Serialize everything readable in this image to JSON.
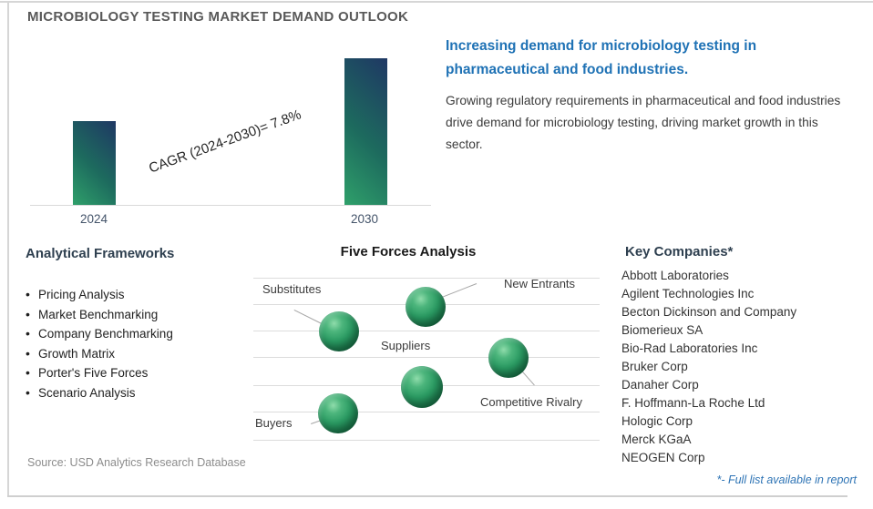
{
  "title": "MICROBIOLOGY TESTING MARKET DEMAND OUTLOOK",
  "chart_data": {
    "type": "bar",
    "title": "Microbiology Testing market demand, 2024 vs 2030",
    "categories": [
      "2024",
      "2030"
    ],
    "values": [
      92,
      161
    ],
    "values_note": "relative bar heights (no numeric y-axis shown); 2030 is ~1.75x the 2024 bar, consistent with 7.8% CAGR",
    "annotation": "CAGR (2024-2030)=  7.8%",
    "cagr_percent": 7.8,
    "xlabel": "",
    "ylabel": "",
    "ylim": [
      0,
      171
    ],
    "grid": false,
    "legend_position": "none"
  },
  "headline": {
    "title": "Increasing demand for microbiology testing in pharmaceutical and food industries.",
    "body": "Growing regulatory requirements in pharmaceutical and food industries drive demand for microbiology testing, driving market growth in this sector."
  },
  "frameworks": {
    "header": "Analytical Frameworks",
    "items": [
      "Pricing Analysis",
      "Market Benchmarking",
      "Company Benchmarking",
      "Growth Matrix",
      "Porter's Five Forces",
      "Scenario Analysis"
    ]
  },
  "five_forces": {
    "header": "Five Forces Analysis",
    "forces": [
      "Substitutes",
      "New Entrants",
      "Suppliers",
      "Competitive Rivalry",
      "Buyers"
    ]
  },
  "companies": {
    "header": "Key Companies*",
    "items": [
      "Abbott Laboratories",
      "Agilent Technologies Inc",
      "Becton Dickinson and Company",
      "Biomerieux SA",
      "Bio-Rad Laboratories Inc",
      "Bruker Corp",
      "Danaher Corp",
      "F. Hoffmann-La Roche Ltd",
      "Hologic Corp",
      "Merck KGaA",
      "NEOGEN Corp"
    ]
  },
  "footer": {
    "source": "Source: USD Analytics Research Database",
    "footnote": "*- Full list available in report"
  },
  "colors": {
    "accent_blue": "#1F72B5",
    "section_header_navy": "#2F4050",
    "title_gray": "#595959",
    "bar_gradient_top_navy": "#1F3864",
    "bar_gradient_bottom_green": "#2FA06A",
    "sphere_green": "#2A9A62",
    "footnote_blue": "#2E74B5",
    "axis_label_slate": "#44546A",
    "source_gray": "#8C8C8C"
  }
}
